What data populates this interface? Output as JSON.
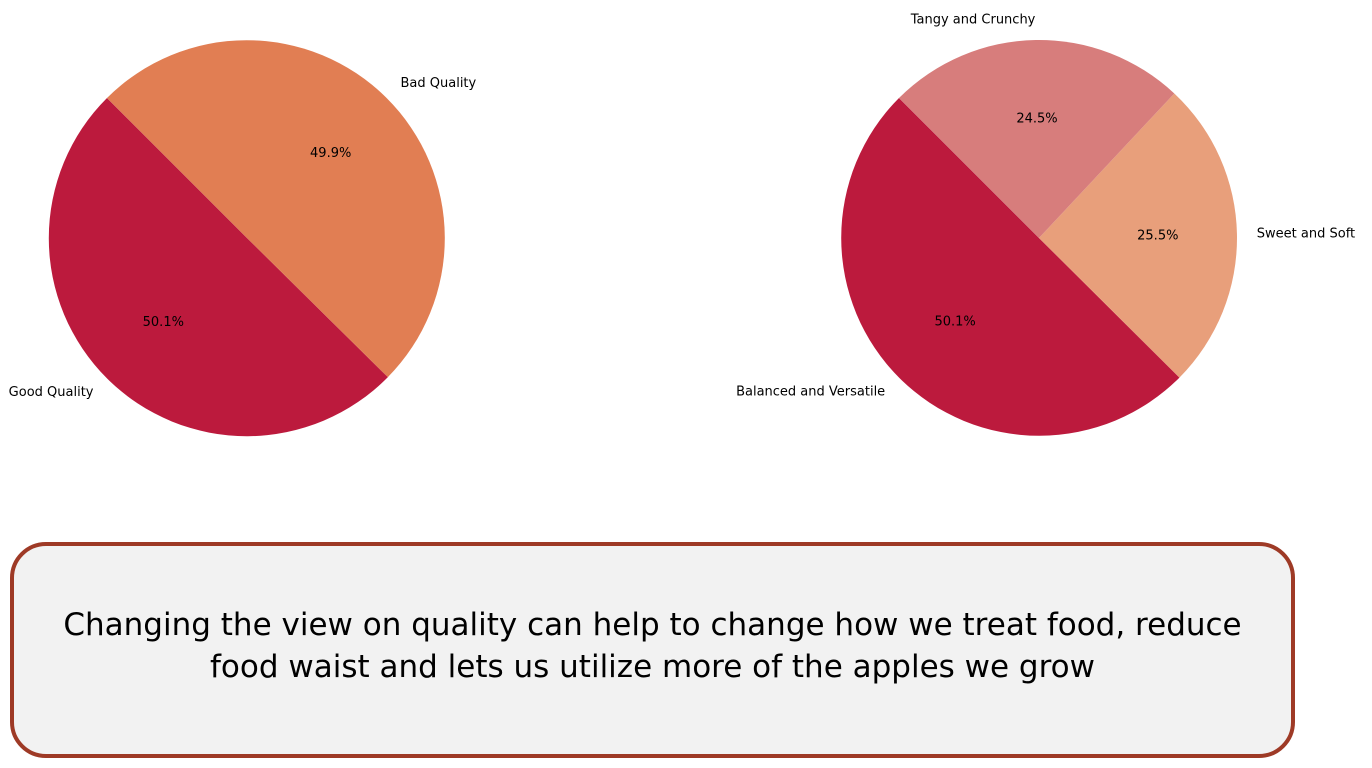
{
  "chart_data": [
    {
      "type": "pie",
      "categories": [
        "Good Quality",
        "Bad Quality"
      ],
      "values": [
        50.1,
        49.9
      ],
      "value_labels": [
        "50.1%",
        "49.9%"
      ],
      "colors": [
        "#bc1a3d",
        "#e17e53"
      ],
      "start_angle": 135,
      "direction": "counterclockwise"
    },
    {
      "type": "pie",
      "categories": [
        "Balanced and Versatile",
        "Sweet and Soft",
        "Tangy and Crunchy"
      ],
      "values": [
        50.1,
        25.5,
        24.5
      ],
      "value_labels": [
        "50.1%",
        "25.5%",
        "24.5%"
      ],
      "colors": [
        "#bc1a3d",
        "#e89f7b",
        "#d77d7c"
      ],
      "start_angle": 135,
      "direction": "counterclockwise"
    }
  ],
  "callout": {
    "text": "Changing the view on quality can help to change how we treat food, reduce food waist and lets us utilize more of the apples we grow",
    "border_color": "#9e3a26",
    "background_color": "#f2f2f2"
  }
}
